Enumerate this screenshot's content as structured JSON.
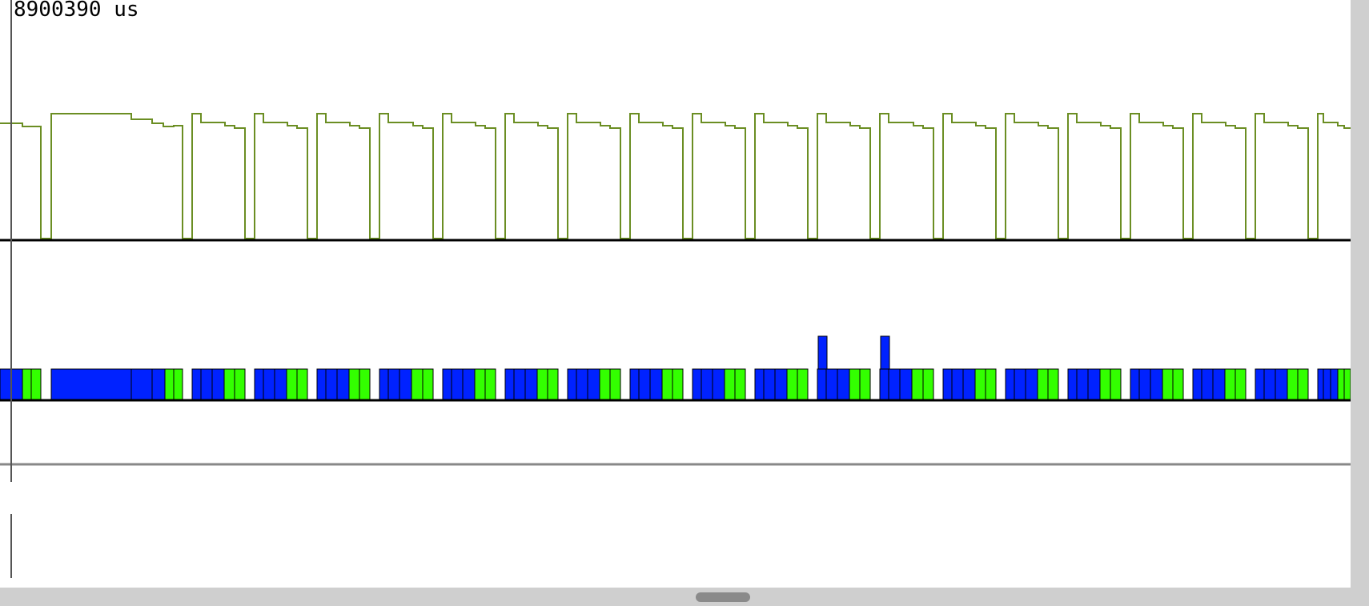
{
  "cursor_time_label": "8900390 us",
  "colors": {
    "waveform": "#6b8e23",
    "running": "#0022ff",
    "ready": "#33ff00",
    "axis": "#000000",
    "separator": "#888888",
    "cursor": "#555555",
    "scrollbar": "#cfcfcf",
    "scroll_thumb": "#8a8a8a"
  },
  "icons": {
    "horizontal_scroll_thumb": "scroll-thumb-icon"
  }
}
